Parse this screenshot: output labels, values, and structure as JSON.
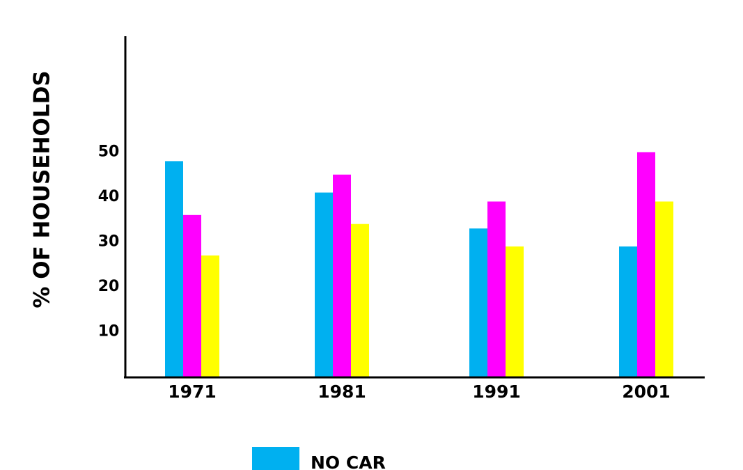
{
  "chart_data": {
    "type": "bar",
    "title": "",
    "xlabel": "",
    "ylabel": "% OF HOUSEHOLDS",
    "categories": [
      "1971",
      "1981",
      "1991",
      "2001"
    ],
    "series": [
      {
        "name": "NO CAR",
        "color": "#00b0f0",
        "values": [
          48,
          41,
          33,
          29
        ]
      },
      {
        "name": "",
        "color": "#ff00ff",
        "values": [
          36,
          45,
          39,
          50
        ]
      },
      {
        "name": "",
        "color": "#ffff00",
        "values": [
          27,
          34,
          29,
          39
        ]
      }
    ],
    "yticks": [
      "10",
      "20",
      "30",
      "40",
      "50"
    ],
    "ytick_values": [
      10,
      20,
      30,
      40,
      50
    ],
    "ylim": [
      0,
      75
    ],
    "grid": false,
    "legend": {
      "position": "bottom",
      "entries": [
        "NO CAR"
      ]
    }
  }
}
